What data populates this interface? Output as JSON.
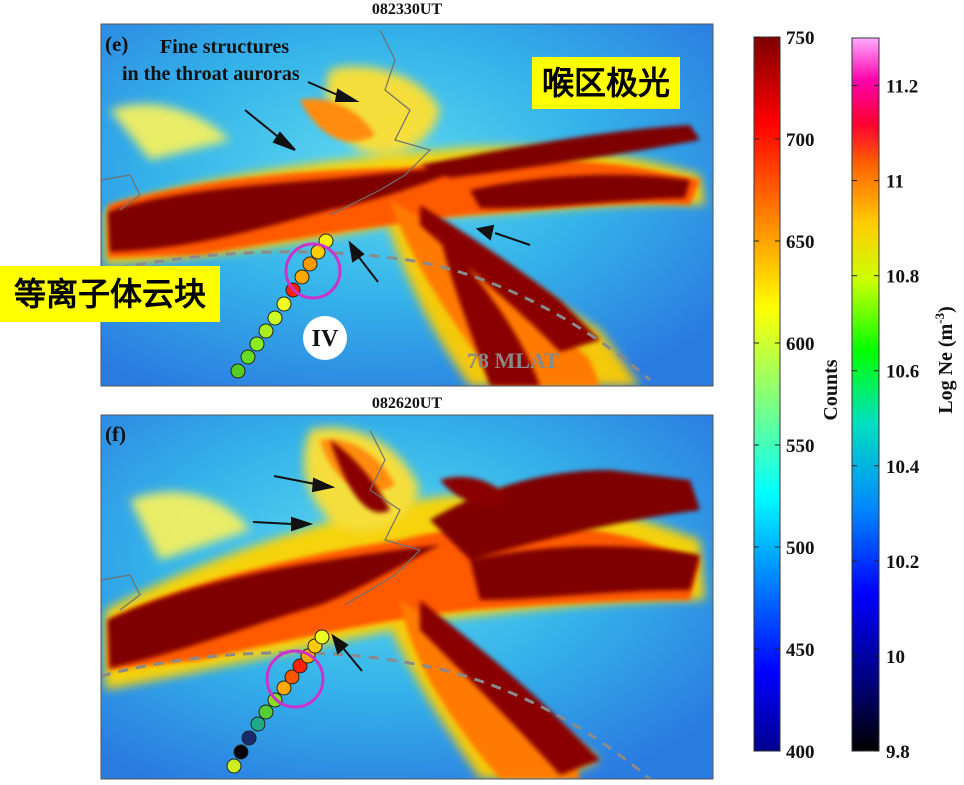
{
  "panels": [
    {
      "letter": "(e)",
      "title": "082330UT",
      "annotation_line1": "Fine structures",
      "annotation_line2": "in the throat auroras",
      "mlat_label": "78 MLAT",
      "marker_label": "IV"
    },
    {
      "letter": "(f)",
      "title": "082620UT"
    }
  ],
  "colorbar_counts": {
    "label": "Counts",
    "range": [
      400,
      750
    ],
    "ticks": [
      "750",
      "700",
      "650",
      "600",
      "550",
      "500",
      "450",
      "400"
    ]
  },
  "colorbar_ne": {
    "label": "Log Ne (m",
    "label_sup": "-3",
    "label_close": ")",
    "range": [
      9.8,
      11.3
    ],
    "ticks": [
      "11.2",
      "11",
      "10.8",
      "10.6",
      "10.4",
      "10.2",
      "10",
      "9.8"
    ]
  },
  "overlay_tags": {
    "throat_aurora_cn": "喉区极光",
    "plasma_patch_cn": "等离子体云块"
  },
  "colors": {
    "aurora_saturated": "#7f0000",
    "background_sky": "#2aa6e6",
    "circle_highlight": "#cc33cc",
    "mlat_dash": "#8a8a8a",
    "tag_yellow": "#ffff00"
  }
}
